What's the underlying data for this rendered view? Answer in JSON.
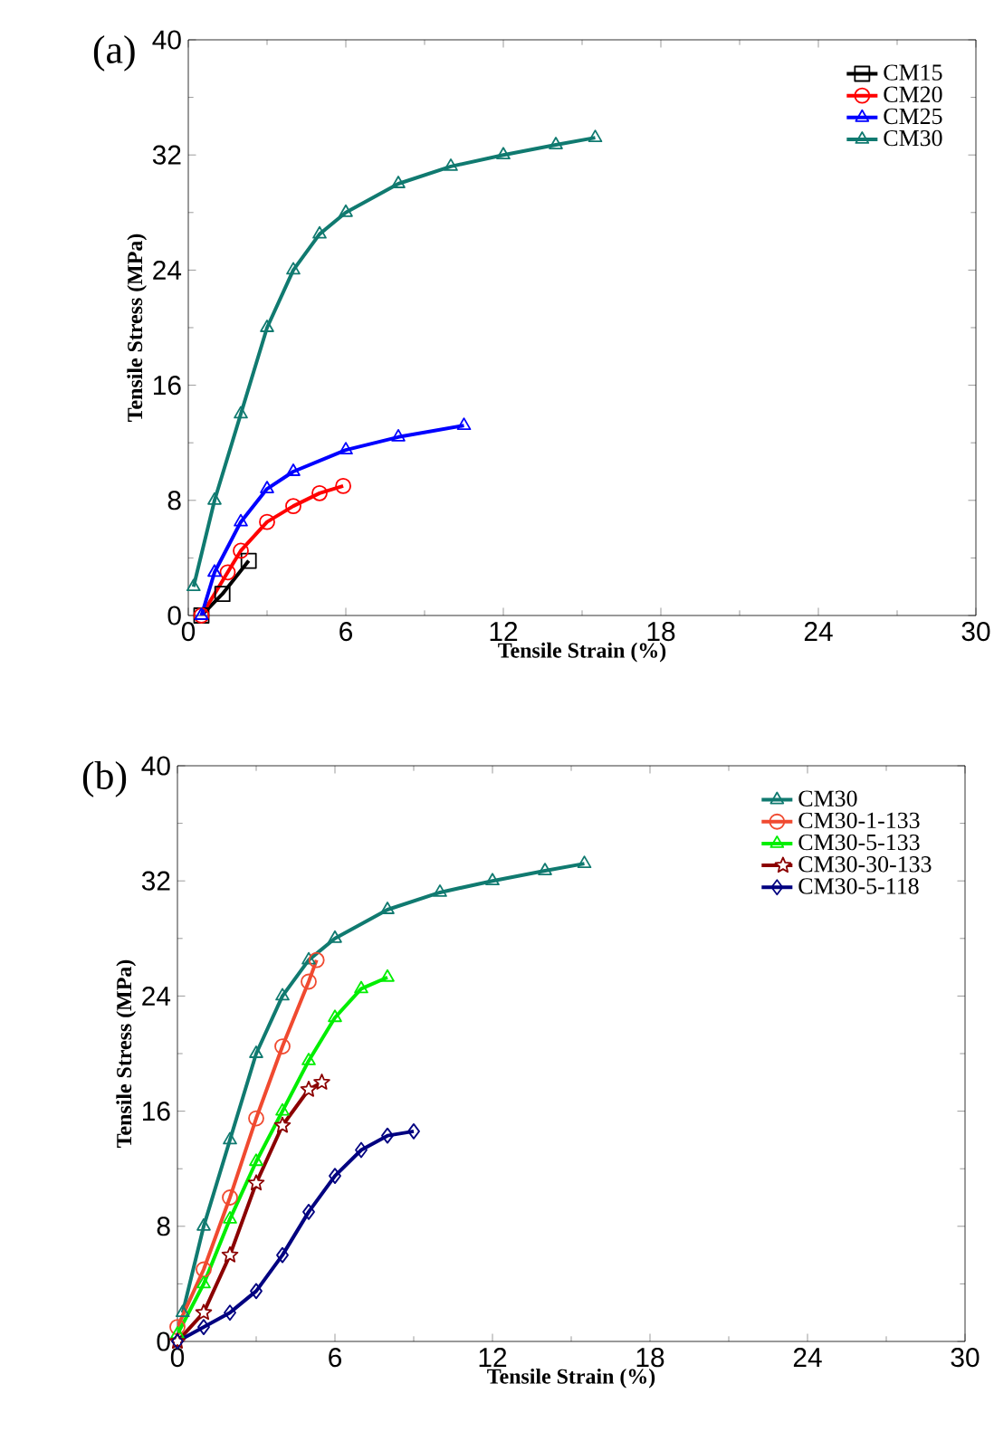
{
  "chart_data": [
    {
      "type": "line",
      "title": "(a)",
      "xlabel": "Tensile Strain (%)",
      "ylabel": "Tensile Stress (MPa)",
      "xlim": [
        0,
        30
      ],
      "ylim": [
        0,
        40
      ],
      "xticks": [
        0,
        6,
        12,
        18,
        24,
        30
      ],
      "yticks": [
        0,
        8,
        16,
        24,
        32,
        40
      ],
      "legend": "top right",
      "series": [
        {
          "name": "CM15",
          "color": "#000000",
          "marker": "square",
          "x": [
            0.5,
            1.3,
            2.3
          ],
          "values": [
            0,
            1.5,
            3.8
          ]
        },
        {
          "name": "CM20",
          "color": "#ff0000",
          "marker": "circle",
          "x": [
            0.5,
            1.5,
            2,
            3,
            4,
            5,
            5.9
          ],
          "values": [
            0,
            3,
            4.5,
            6.5,
            7.6,
            8.5,
            9.0
          ]
        },
        {
          "name": "CM25",
          "color": "#0000ff",
          "marker": "triangle",
          "x": [
            0.5,
            1,
            2,
            3,
            4,
            6,
            8,
            10.5
          ],
          "values": [
            0,
            3,
            6.5,
            8.8,
            10,
            11.5,
            12.4,
            13.2
          ]
        },
        {
          "name": "CM30",
          "color": "#107a70",
          "marker": "triangle",
          "x": [
            0.2,
            1,
            2,
            3,
            4,
            5,
            6,
            8,
            10,
            12,
            14,
            15.5
          ],
          "values": [
            2,
            8,
            14,
            20,
            24,
            26.5,
            28,
            30,
            31.2,
            32,
            32.7,
            33.2
          ]
        }
      ]
    },
    {
      "type": "line",
      "title": "(b)",
      "xlabel": "Tensile Strain (%)",
      "ylabel": "Tensile Stress (MPa)",
      "xlim": [
        0,
        30
      ],
      "ylim": [
        0,
        40
      ],
      "xticks": [
        0,
        6,
        12,
        18,
        24,
        30
      ],
      "yticks": [
        0,
        8,
        16,
        24,
        32,
        40
      ],
      "legend": "top right",
      "series": [
        {
          "name": "CM30",
          "color": "#107a70",
          "marker": "triangle",
          "x": [
            0.2,
            1,
            2,
            3,
            4,
            5,
            6,
            8,
            10,
            12,
            14,
            15.5
          ],
          "values": [
            2,
            8,
            14,
            20,
            24,
            26.5,
            28,
            30,
            31.2,
            32,
            32.7,
            33.2
          ]
        },
        {
          "name": "CM30-1-133",
          "color": "#f04a30",
          "marker": "circle",
          "x": [
            0,
            1,
            2,
            3,
            4,
            5,
            5.3
          ],
          "values": [
            1,
            5,
            10,
            15.5,
            20.5,
            25,
            26.5
          ]
        },
        {
          "name": "CM30-5-133",
          "color": "#00ee00",
          "marker": "triangle",
          "x": [
            0,
            1,
            2,
            3,
            4,
            5,
            6,
            7,
            8
          ],
          "values": [
            0.5,
            4,
            8.5,
            12.5,
            16,
            19.5,
            22.5,
            24.5,
            25.3
          ]
        },
        {
          "name": "CM30-30-133",
          "color": "#8b0000",
          "marker": "star",
          "x": [
            0,
            1,
            2,
            3,
            4,
            5,
            5.5
          ],
          "values": [
            0,
            2,
            6,
            11,
            15,
            17.5,
            18
          ]
        },
        {
          "name": "CM30-5-118",
          "color": "#000080",
          "marker": "diamond",
          "x": [
            0,
            1,
            2,
            3,
            4,
            5,
            6,
            7,
            8,
            9
          ],
          "values": [
            0,
            1,
            2,
            3.5,
            6,
            9,
            11.5,
            13.3,
            14.3,
            14.6
          ]
        }
      ]
    }
  ]
}
